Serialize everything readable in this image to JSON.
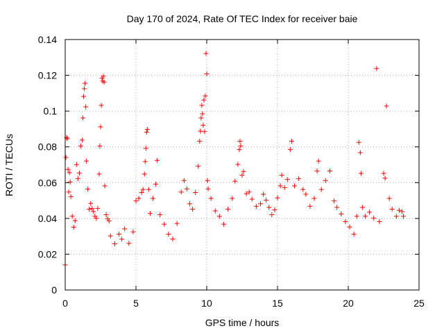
{
  "chart_data": {
    "type": "scatter",
    "title": "Day 170 of 2024, Rate Of TEC Index for receiver baie",
    "xlabel": "GPS time / hours",
    "ylabel": "ROTI / TECUs",
    "xlim": [
      0,
      25
    ],
    "ylim": [
      0,
      0.14
    ],
    "xticks": [
      0,
      5,
      10,
      15,
      20,
      25
    ],
    "yticks": [
      0,
      0.02,
      0.04,
      0.06,
      0.08,
      0.1,
      0.12,
      0.14
    ],
    "xtick_labels": [
      "0",
      "5",
      "10",
      "15",
      "20",
      "25"
    ],
    "ytick_labels": [
      "0",
      "0.02",
      "0.04",
      "0.06",
      "0.08",
      "0.1",
      "0.12",
      "0.14"
    ],
    "grid": true,
    "marker": "+",
    "color": "#ff0000",
    "series": [
      {
        "points": [
          [
            0.0,
            0.014
          ],
          [
            0.05,
            0.0741
          ],
          [
            0.1,
            0.0852
          ],
          [
            0.15,
            0.0846
          ],
          [
            0.2,
            0.0674
          ],
          [
            0.25,
            0.0548
          ],
          [
            0.3,
            0.0656
          ],
          [
            0.35,
            0.0604
          ],
          [
            0.4,
            0.0522
          ],
          [
            0.5,
            0.0412
          ],
          [
            0.6,
            0.0351
          ],
          [
            0.7,
            0.0388
          ],
          [
            0.8,
            0.0701
          ],
          [
            0.9,
            0.0623
          ],
          [
            1.0,
            0.0654
          ],
          [
            1.1,
            0.0805
          ],
          [
            1.2,
            0.0838
          ],
          [
            1.25,
            0.0962
          ],
          [
            1.3,
            0.1082
          ],
          [
            1.35,
            0.1125
          ],
          [
            1.4,
            0.1155
          ],
          [
            1.45,
            0.1024
          ],
          [
            1.5,
            0.0721
          ],
          [
            1.6,
            0.0564
          ],
          [
            1.7,
            0.0452
          ],
          [
            1.8,
            0.0484
          ],
          [
            1.9,
            0.0455
          ],
          [
            2.0,
            0.0438
          ],
          [
            2.1,
            0.0412
          ],
          [
            2.2,
            0.0401
          ],
          [
            2.3,
            0.0456
          ],
          [
            2.4,
            0.0648
          ],
          [
            2.45,
            0.0805
          ],
          [
            2.5,
            0.0912
          ],
          [
            2.55,
            0.1032
          ],
          [
            2.6,
            0.1185
          ],
          [
            2.65,
            0.1168
          ],
          [
            2.7,
            0.1195
          ],
          [
            2.75,
            0.1162
          ],
          [
            2.8,
            0.0582
          ],
          [
            2.9,
            0.0421
          ],
          [
            3.0,
            0.0398
          ],
          [
            3.1,
            0.0386
          ],
          [
            3.2,
            0.0302
          ],
          [
            3.5,
            0.0258
          ],
          [
            3.8,
            0.0312
          ],
          [
            4.0,
            0.0284
          ],
          [
            4.2,
            0.0342
          ],
          [
            4.5,
            0.0261
          ],
          [
            4.8,
            0.0325
          ],
          [
            5.0,
            0.0498
          ],
          [
            5.2,
            0.0512
          ],
          [
            5.4,
            0.0545
          ],
          [
            5.5,
            0.0562
          ],
          [
            5.6,
            0.0648
          ],
          [
            5.65,
            0.0718
          ],
          [
            5.7,
            0.0792
          ],
          [
            5.75,
            0.0882
          ],
          [
            5.8,
            0.0898
          ],
          [
            5.9,
            0.0562
          ],
          [
            6.0,
            0.0428
          ],
          [
            6.2,
            0.0512
          ],
          [
            6.4,
            0.0592
          ],
          [
            6.5,
            0.0724
          ],
          [
            6.7,
            0.0421
          ],
          [
            7.0,
            0.0368
          ],
          [
            7.3,
            0.0312
          ],
          [
            7.6,
            0.0285
          ],
          [
            7.9,
            0.0372
          ],
          [
            8.2,
            0.0548
          ],
          [
            8.4,
            0.0612
          ],
          [
            8.6,
            0.0565
          ],
          [
            8.8,
            0.0482
          ],
          [
            9.0,
            0.0452
          ],
          [
            9.2,
            0.0545
          ],
          [
            9.4,
            0.0692
          ],
          [
            9.5,
            0.0832
          ],
          [
            9.55,
            0.0888
          ],
          [
            9.6,
            0.0962
          ],
          [
            9.65,
            0.1032
          ],
          [
            9.7,
            0.0985
          ],
          [
            9.75,
            0.0921
          ],
          [
            9.8,
            0.1062
          ],
          [
            9.85,
            0.0885
          ],
          [
            9.9,
            0.1085
          ],
          [
            9.95,
            0.1322
          ],
          [
            10.0,
            0.1208
          ],
          [
            10.05,
            0.0612
          ],
          [
            10.1,
            0.0565
          ],
          [
            10.3,
            0.0512
          ],
          [
            10.6,
            0.0442
          ],
          [
            10.9,
            0.0412
          ],
          [
            11.2,
            0.0368
          ],
          [
            11.5,
            0.0452
          ],
          [
            11.8,
            0.0512
          ],
          [
            12.0,
            0.0608
          ],
          [
            12.2,
            0.0702
          ],
          [
            12.3,
            0.0785
          ],
          [
            12.35,
            0.0832
          ],
          [
            12.4,
            0.0805
          ],
          [
            12.5,
            0.0642
          ],
          [
            12.6,
            0.0662
          ],
          [
            12.8,
            0.0538
          ],
          [
            13.0,
            0.0548
          ],
          [
            13.2,
            0.0508
          ],
          [
            13.5,
            0.0468
          ],
          [
            13.8,
            0.0482
          ],
          [
            14.0,
            0.0535
          ],
          [
            14.2,
            0.0502
          ],
          [
            14.4,
            0.0462
          ],
          [
            14.6,
            0.0421
          ],
          [
            14.8,
            0.0448
          ],
          [
            15.0,
            0.0515
          ],
          [
            15.2,
            0.0582
          ],
          [
            15.3,
            0.0642
          ],
          [
            15.5,
            0.0572
          ],
          [
            15.7,
            0.0618
          ],
          [
            15.9,
            0.0785
          ],
          [
            16.0,
            0.0832
          ],
          [
            16.2,
            0.0582
          ],
          [
            16.5,
            0.0622
          ],
          [
            16.8,
            0.0562
          ],
          [
            17.0,
            0.0535
          ],
          [
            17.3,
            0.0468
          ],
          [
            17.6,
            0.0512
          ],
          [
            17.8,
            0.0665
          ],
          [
            17.9,
            0.0721
          ],
          [
            18.1,
            0.0562
          ],
          [
            18.4,
            0.0612
          ],
          [
            18.7,
            0.0665
          ],
          [
            19.0,
            0.0498
          ],
          [
            19.2,
            0.0462
          ],
          [
            19.5,
            0.0425
          ],
          [
            19.8,
            0.0382
          ],
          [
            20.1,
            0.0352
          ],
          [
            20.4,
            0.0312
          ],
          [
            20.6,
            0.0412
          ],
          [
            20.75,
            0.0825
          ],
          [
            20.85,
            0.0768
          ],
          [
            20.9,
            0.0652
          ],
          [
            21.0,
            0.0462
          ],
          [
            21.2,
            0.0412
          ],
          [
            21.5,
            0.0435
          ],
          [
            21.8,
            0.0402
          ],
          [
            22.0,
            0.1238
          ],
          [
            22.2,
            0.0382
          ],
          [
            22.5,
            0.0652
          ],
          [
            22.6,
            0.0625
          ],
          [
            22.7,
            0.1028
          ],
          [
            22.9,
            0.0512
          ],
          [
            23.1,
            0.0452
          ],
          [
            23.4,
            0.0412
          ],
          [
            23.6,
            0.0445
          ],
          [
            23.8,
            0.0438
          ],
          [
            23.9,
            0.0412
          ]
        ]
      }
    ]
  }
}
